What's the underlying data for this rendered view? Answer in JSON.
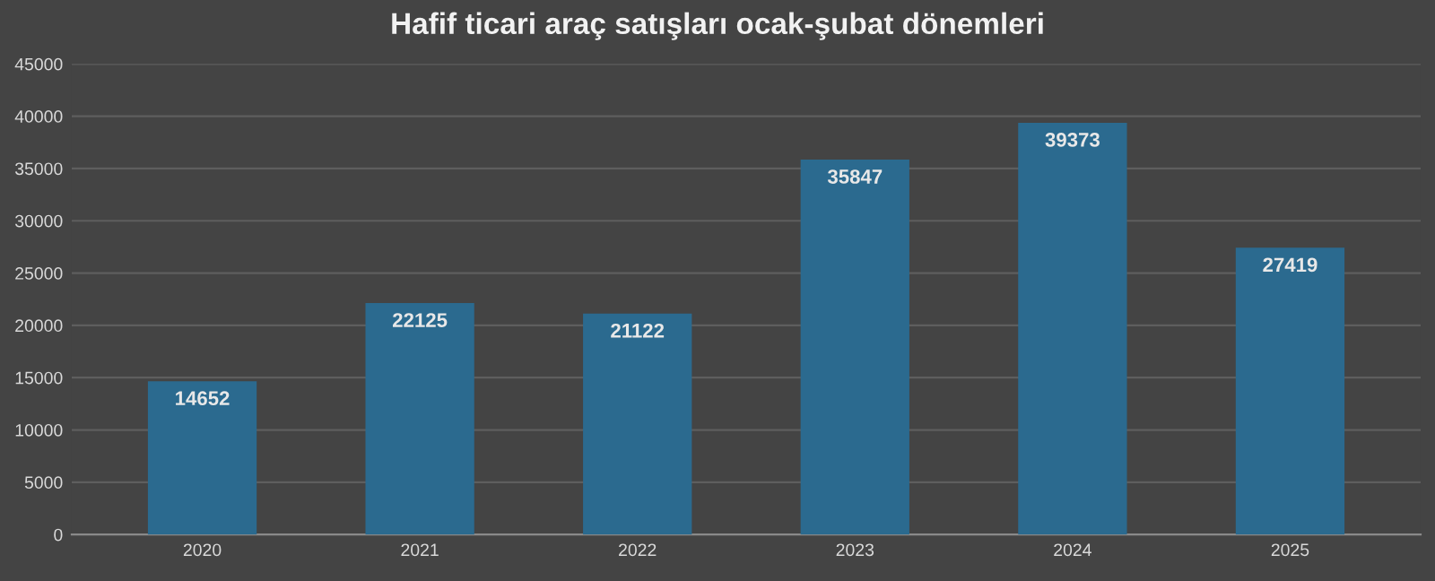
{
  "chart_data": {
    "type": "bar",
    "title": "Hafif ticari araç satışları ocak-şubat dönemleri",
    "categories": [
      "2020",
      "2021",
      "2022",
      "2023",
      "2024",
      "2025"
    ],
    "values": [
      14652,
      22125,
      21122,
      35847,
      39373,
      27419
    ],
    "color": "#2b6a8f",
    "ylim": [
      0,
      45000
    ],
    "yticks": [
      0,
      5000,
      10000,
      15000,
      20000,
      25000,
      30000,
      35000,
      40000,
      45000
    ],
    "grid": "y",
    "data_labels": true
  }
}
